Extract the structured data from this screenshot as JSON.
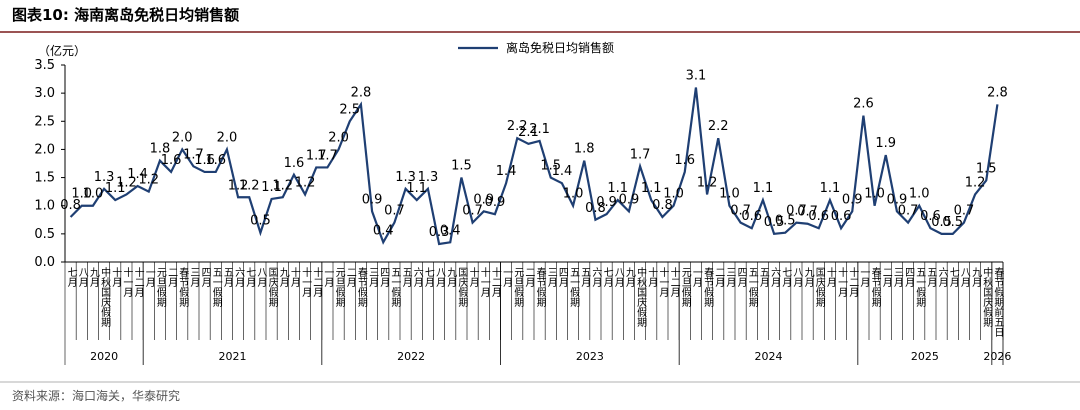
{
  "chart_data": {
    "type": "line",
    "title": "图表10:  海南离岛免税日均销售额",
    "y_unit": "（亿元）",
    "source": "资料来源：海口海关，华泰研究",
    "categories": [
      "七月",
      "八月",
      "九月",
      "中秋国庆假期",
      "十月",
      "十一月",
      "十二月",
      "一月",
      "元旦假期",
      "二月",
      "春节假期",
      "三月",
      "四月",
      "五一假期",
      "五月",
      "六月",
      "七月",
      "八月",
      "国庆假期",
      "九月",
      "十月",
      "十一月",
      "十二月",
      "一月",
      "元旦假期",
      "二月",
      "春节假期",
      "三月",
      "四月",
      "五一假期",
      "五月",
      "六月",
      "七月",
      "八月",
      "九月",
      "国庆假期",
      "十月",
      "十一月",
      "十二月",
      "一月",
      "元旦假期",
      "二月",
      "春节假期",
      "三月",
      "四月",
      "五一假期",
      "五月",
      "六月",
      "七月",
      "八月",
      "九月",
      "中秋国庆假期",
      "十月",
      "十一月",
      "十二月",
      "元旦假期",
      "一月",
      "春节假期",
      "二月",
      "三月",
      "四月",
      "五一假期",
      "五月",
      "六月",
      "七月",
      "八月",
      "九月",
      "国庆假期",
      "十月",
      "十一月",
      "十二月",
      "一月",
      "春节假期",
      "二月",
      "三月",
      "四月",
      "五一假期",
      "五月",
      "六月",
      "七月",
      "八月",
      "九月",
      "中秋国庆假期",
      "春节假期前五日"
    ],
    "groups": [
      "2020",
      "2020",
      "2020",
      "2020",
      "2020",
      "2020",
      "2020",
      "2021",
      "2021",
      "2021",
      "2021",
      "2021",
      "2021",
      "2021",
      "2021",
      "2021",
      "2021",
      "2021",
      "2021",
      "2021",
      "2021",
      "2021",
      "2021",
      "2022",
      "2022",
      "2022",
      "2022",
      "2022",
      "2022",
      "2022",
      "2022",
      "2022",
      "2022",
      "2022",
      "2022",
      "2022",
      "2022",
      "2022",
      "2022",
      "2023",
      "2023",
      "2023",
      "2023",
      "2023",
      "2023",
      "2023",
      "2023",
      "2023",
      "2023",
      "2023",
      "2023",
      "2023",
      "2023",
      "2023",
      "2023",
      "2024",
      "2024",
      "2024",
      "2024",
      "2024",
      "2024",
      "2024",
      "2024",
      "2024",
      "2024",
      "2024",
      "2024",
      "2024",
      "2024",
      "2024",
      "2024",
      "2025",
      "2025",
      "2025",
      "2025",
      "2025",
      "2025",
      "2025",
      "2025",
      "2025",
      "2025",
      "2025",
      "2025",
      "2026"
    ],
    "series": [
      {
        "name": "离岛免税日均销售额",
        "color": "#1f3f73",
        "values": [
          0.8,
          1.0,
          1.0,
          1.3,
          1.1,
          1.2,
          1.35,
          1.25,
          1.8,
          1.6,
          2.0,
          1.7,
          1.6,
          1.6,
          2.0,
          1.15,
          1.15,
          0.52,
          1.12,
          1.15,
          1.55,
          1.2,
          1.68,
          1.68,
          2.0,
          2.5,
          2.8,
          0.9,
          0.35,
          0.7,
          1.3,
          1.1,
          1.3,
          0.32,
          0.35,
          1.5,
          0.7,
          0.9,
          0.85,
          1.4,
          2.2,
          2.1,
          2.15,
          1.5,
          1.4,
          1.0,
          1.8,
          0.75,
          0.85,
          1.1,
          0.9,
          1.7,
          1.1,
          0.8,
          1.0,
          1.6,
          3.1,
          1.2,
          2.2,
          1.0,
          0.7,
          0.6,
          1.1,
          0.5,
          0.52,
          0.7,
          0.68,
          0.6,
          1.1,
          0.6,
          0.9,
          2.6,
          1.0,
          1.9,
          0.9,
          0.7,
          1.0,
          0.6,
          0.5,
          0.5,
          0.7,
          1.2,
          1.45,
          2.8
        ],
        "value_labels": [
          "0.8",
          "1.0",
          "1.0",
          "1.3",
          "1.1",
          "1.2",
          "1.4",
          "1.2",
          "1.8",
          "1.6",
          "2.0",
          "1.7",
          "1.6",
          "1.6",
          "2.0",
          "1.2",
          "1.2",
          "0.5",
          "1.1",
          "1.2",
          "1.6",
          "1.2",
          "1.7",
          "1.7",
          "2.0",
          "2.5",
          "2.8",
          "0.9",
          "0.4",
          "0.7",
          "1.3",
          "1.1",
          "1.3",
          "0.3",
          "0.4",
          "1.5",
          "0.7",
          "0.9",
          "0.9",
          "1.4",
          "2.2",
          "2.1",
          "2.1",
          "1.5",
          "1.4",
          "1.0",
          "1.8",
          "0.8",
          "0.9",
          "1.1",
          "0.9",
          "1.7",
          "1.1",
          "0.8",
          "1.0",
          "1.6",
          "3.1",
          "1.2",
          "2.2",
          "1.0",
          "0.7",
          "0.6",
          "1.1",
          "0.5",
          "0.5",
          "0.7",
          "0.7",
          "0.6",
          "1.1",
          "0.6",
          "0.9",
          "2.6",
          "1.0",
          "1.9",
          "0.9",
          "0.7",
          "1.0",
          "0.6",
          "0.5",
          "0.5",
          "0.7",
          "1.2",
          "1.5",
          "2.8"
        ]
      }
    ],
    "ylim": [
      0,
      3.5
    ],
    "yticks": [
      {
        "value": 0,
        "label": "0.0"
      },
      {
        "value": 0.5,
        "label": "0.5"
      },
      {
        "value": 1,
        "label": "1.0"
      },
      {
        "value": 1.5,
        "label": "1.5"
      },
      {
        "value": 2,
        "label": "2.0"
      },
      {
        "value": 2.5,
        "label": "2.5"
      },
      {
        "value": 3,
        "label": "3.0"
      },
      {
        "value": 3.5,
        "label": "3.5"
      }
    ],
    "legend": "top"
  }
}
